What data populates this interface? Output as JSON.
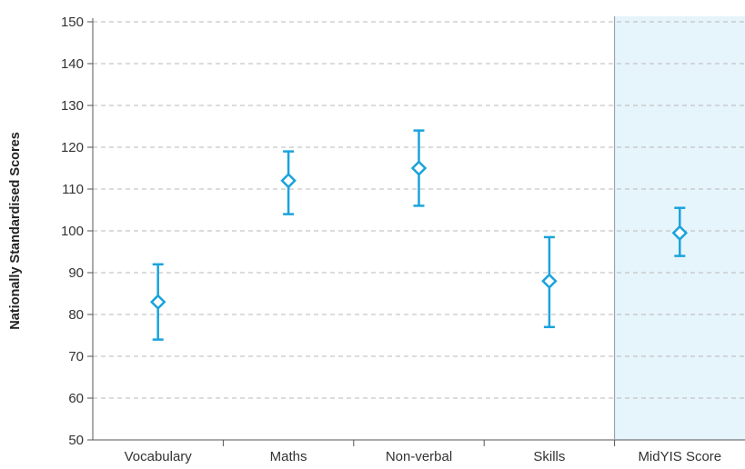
{
  "chart_data": {
    "type": "errorbar",
    "title": "",
    "xlabel": "",
    "ylabel": "Nationally Standardised Scores",
    "ylim": [
      50,
      150
    ],
    "yticks": [
      50,
      60,
      70,
      80,
      90,
      100,
      110,
      120,
      130,
      140,
      150
    ],
    "grid": true,
    "highlight_category": "MidYIS Score",
    "categories": [
      "Vocabulary",
      "Maths",
      "Non-verbal",
      "Skills",
      "MidYIS Score"
    ],
    "points": [
      {
        "category": "Vocabulary",
        "value": 83,
        "low": 74,
        "high": 92
      },
      {
        "category": "Maths",
        "value": 112,
        "low": 104,
        "high": 119
      },
      {
        "category": "Non-verbal",
        "value": 115,
        "low": 106,
        "high": 124
      },
      {
        "category": "Skills",
        "value": 88,
        "low": 77,
        "high": 98.5
      },
      {
        "category": "MidYIS Score",
        "value": 99.5,
        "low": 94,
        "high": 105.5
      }
    ],
    "colors": {
      "marker": "#1aa3dc",
      "grid": "#b8b8b8",
      "axis": "#555555",
      "highlight_fill": "#e6f4fb"
    }
  }
}
